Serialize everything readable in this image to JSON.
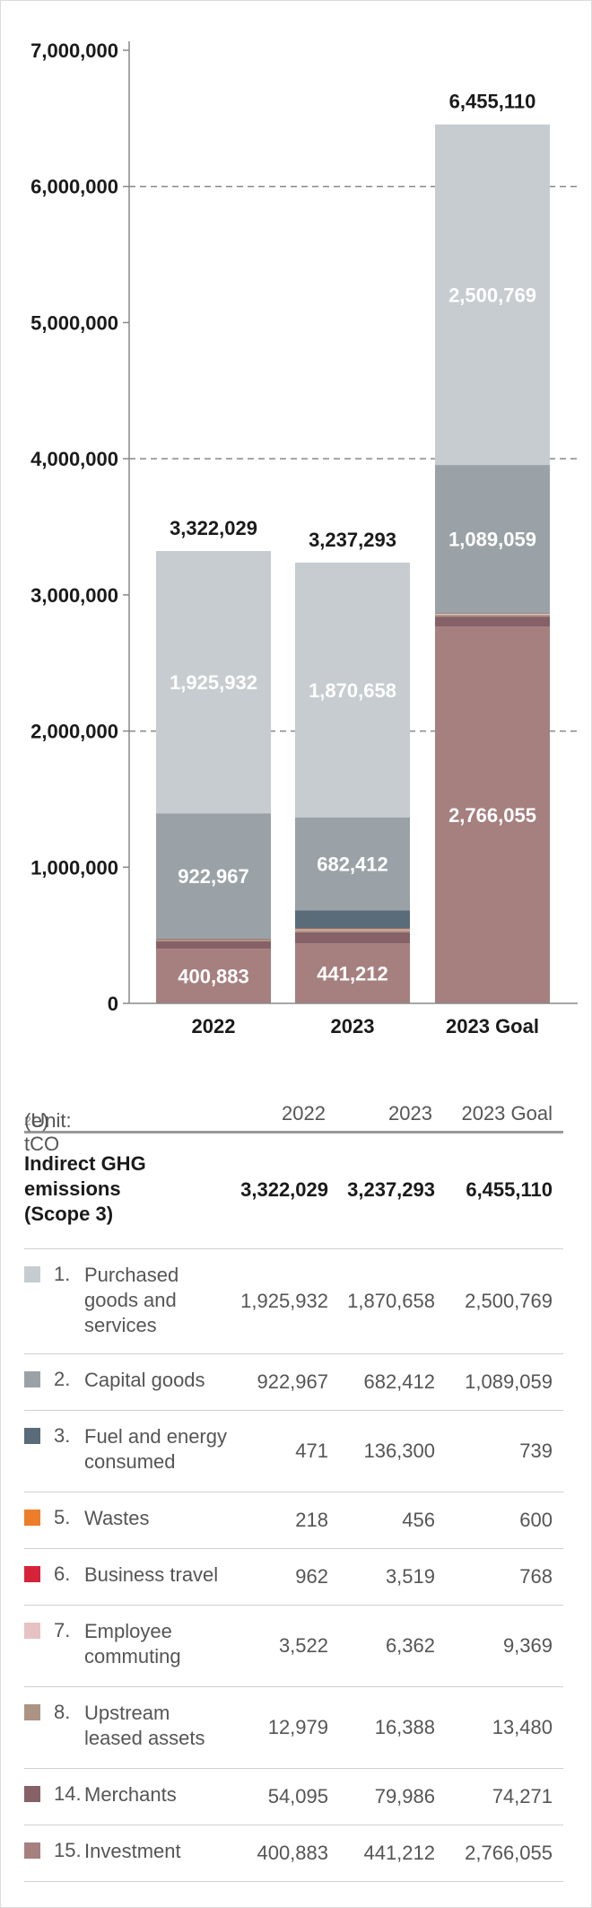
{
  "chart_data": {
    "type": "bar",
    "stacked": true,
    "categories": [
      "2022",
      "2023",
      "2023 Goal"
    ],
    "ylim": [
      0,
      7000000
    ],
    "yticks": [
      {
        "value": 0,
        "label": "0"
      },
      {
        "value": 1000000,
        "label": "1,000,000"
      },
      {
        "value": 2000000,
        "label": "2,000,000"
      },
      {
        "value": 3000000,
        "label": "3,000,000"
      },
      {
        "value": 4000000,
        "label": "4,000,000"
      },
      {
        "value": 5000000,
        "label": "5,000,000"
      },
      {
        "value": 6000000,
        "label": "6,000,000"
      },
      {
        "value": 7000000,
        "label": "7,000,000"
      }
    ],
    "gridlines": [
      2000000,
      4000000,
      6000000
    ],
    "totals": [
      "3,322,029",
      "3,237,293",
      "6,455,110"
    ],
    "total_values": [
      3322029,
      3237293,
      6455110
    ],
    "series": [
      {
        "name": "15. Investment",
        "color": "#a67f7f",
        "values": [
          400883,
          441212,
          2766055
        ],
        "labels": [
          "400,883",
          "441,212",
          "2,766,055"
        ]
      },
      {
        "name": "14. Merchants",
        "color": "#876168",
        "values": [
          54095,
          79986,
          74271
        ]
      },
      {
        "name": "8. Upstream leased assets",
        "color": "#ab9483",
        "values": [
          12979,
          16388,
          13480
        ]
      },
      {
        "name": "7. Employee commuting",
        "color": "#e7c2c5",
        "values": [
          3522,
          6362,
          9369
        ]
      },
      {
        "name": "6. Business travel",
        "color": "#d7233a",
        "values": [
          962,
          3519,
          768
        ]
      },
      {
        "name": "5. Wastes",
        "color": "#ee7d2a",
        "values": [
          218,
          456,
          600
        ]
      },
      {
        "name": "3. Fuel and energy consumed",
        "color": "#5a6c79",
        "values": [
          471,
          136300,
          739
        ]
      },
      {
        "name": "2. Capital goods",
        "color": "#9aa2a7",
        "values": [
          922967,
          682412,
          1089059
        ],
        "labels": [
          "922,967",
          "682,412",
          "1,089,059"
        ]
      },
      {
        "name": "1. Purchased goods and services",
        "color": "#c6ccd0",
        "values": [
          1925932,
          1870658,
          2500769
        ],
        "labels": [
          "1,925,932",
          "1,870,658",
          "2,500,769"
        ]
      }
    ]
  },
  "table": {
    "unit_prefix": "(Unit: tCO",
    "unit_sub": "2",
    "unit_suffix": "e)",
    "col_headers": [
      "2022",
      "2023",
      "2023 Goal"
    ],
    "total_row": {
      "label": "Indirect GHG emissions (Scope 3)",
      "values": [
        "3,322,029",
        "3,237,293",
        "6,455,110"
      ]
    },
    "rows": [
      {
        "num": "1.",
        "label": "Purchased goods and services",
        "color": "#c6ccd0",
        "values": [
          "1,925,932",
          "1,870,658",
          "2,500,769"
        ]
      },
      {
        "num": "2.",
        "label": "Capital goods",
        "color": "#9aa2a7",
        "values": [
          "922,967",
          "682,412",
          "1,089,059"
        ]
      },
      {
        "num": "3.",
        "label": "Fuel and energy consumed",
        "color": "#5a6c79",
        "values": [
          "471",
          "136,300",
          "739"
        ]
      },
      {
        "num": "5.",
        "label": "Wastes",
        "color": "#ee7d2a",
        "values": [
          "218",
          "456",
          "600"
        ]
      },
      {
        "num": "6.",
        "label": "Business travel",
        "color": "#d7233a",
        "values": [
          "962",
          "3,519",
          "768"
        ]
      },
      {
        "num": "7.",
        "label": "Employee commuting",
        "color": "#e7c2c5",
        "values": [
          "3,522",
          "6,362",
          "9,369"
        ]
      },
      {
        "num": "8.",
        "label": "Upstream leased assets",
        "color": "#ab9483",
        "values": [
          "12,979",
          "16,388",
          "13,480"
        ]
      },
      {
        "num": "14.",
        "label": "Merchants",
        "color": "#876168",
        "values": [
          "54,095",
          "79,986",
          "74,271"
        ]
      },
      {
        "num": "15.",
        "label": "Investment",
        "color": "#a67f7f",
        "values": [
          "400,883",
          "441,212",
          "2,766,055"
        ]
      }
    ]
  }
}
